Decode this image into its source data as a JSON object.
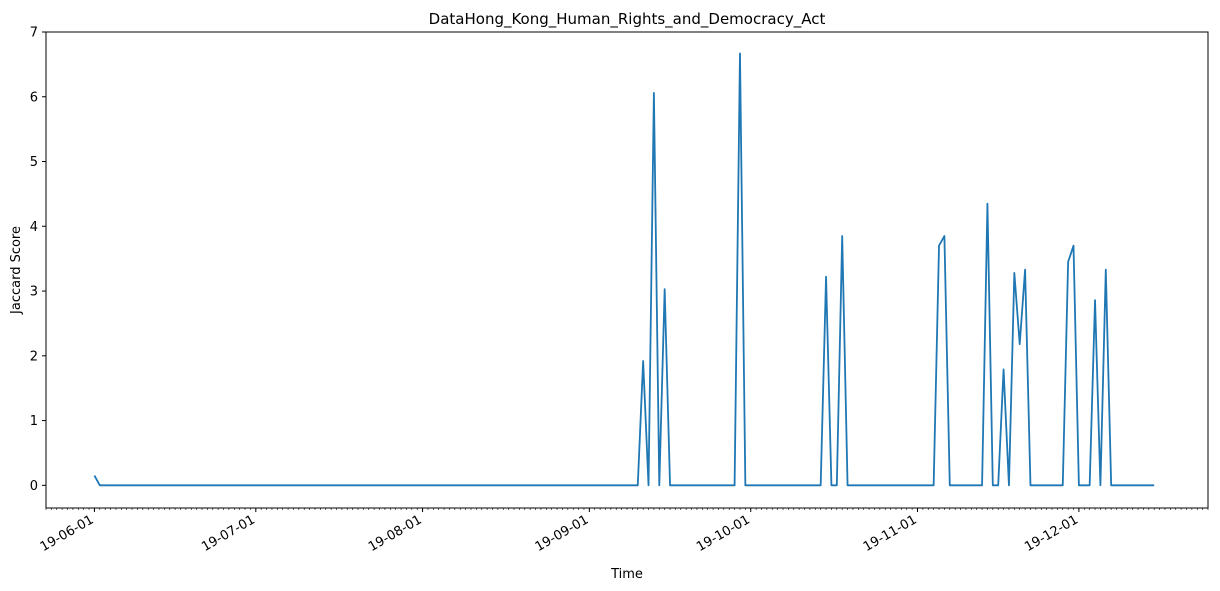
{
  "chart_data": {
    "type": "line",
    "title": "DataHong_Kong_Human_Rights_and_Democracy_Act",
    "xlabel": "Time",
    "ylabel": "Jaccard Score",
    "x_type": "date",
    "xlim": [
      "2019-05-23",
      "2019-12-25"
    ],
    "ylim": [
      -0.35,
      7
    ],
    "y_ticks": [
      0,
      1,
      2,
      3,
      4,
      5,
      6,
      7
    ],
    "x_ticks": [
      {
        "date": "2019-06-01",
        "label": "19-06-01"
      },
      {
        "date": "2019-07-01",
        "label": "19-07-01"
      },
      {
        "date": "2019-08-01",
        "label": "19-08-01"
      },
      {
        "date": "2019-09-01",
        "label": "19-09-01"
      },
      {
        "date": "2019-10-01",
        "label": "19-10-01"
      },
      {
        "date": "2019-11-01",
        "label": "19-11-01"
      },
      {
        "date": "2019-12-01",
        "label": "19-12-01"
      }
    ],
    "grid": false,
    "legend": "none",
    "line_color": "#1f77b4",
    "series": [
      {
        "x": [
          "2019-06-01",
          "2019-06-02",
          "2019-09-10",
          "2019-09-11",
          "2019-09-12",
          "2019-09-13",
          "2019-09-14",
          "2019-09-15",
          "2019-09-16",
          "2019-09-28",
          "2019-09-29",
          "2019-09-30",
          "2019-10-14",
          "2019-10-15",
          "2019-10-16",
          "2019-10-17",
          "2019-10-18",
          "2019-10-19",
          "2019-11-04",
          "2019-11-05",
          "2019-11-06",
          "2019-11-07",
          "2019-11-13",
          "2019-11-14",
          "2019-11-15",
          "2019-11-16",
          "2019-11-17",
          "2019-11-18",
          "2019-11-19",
          "2019-11-20",
          "2019-11-21",
          "2019-11-22",
          "2019-11-23",
          "2019-11-28",
          "2019-11-29",
          "2019-11-30",
          "2019-12-01",
          "2019-12-02",
          "2019-12-03",
          "2019-12-04",
          "2019-12-05",
          "2019-12-06",
          "2019-12-07",
          "2019-12-08",
          "2019-12-09",
          "2019-12-10",
          "2019-12-11",
          "2019-12-12",
          "2019-12-13",
          "2019-12-14",
          "2019-12-15"
        ],
        "values": [
          0.15,
          0,
          0,
          1.92,
          0,
          6.06,
          0,
          3.03,
          0,
          0,
          6.67,
          0,
          0,
          3.22,
          0,
          0,
          3.85,
          0,
          0,
          3.7,
          3.85,
          0,
          0,
          4.35,
          0,
          0,
          1.79,
          0,
          3.28,
          2.18,
          3.33,
          0,
          0,
          0,
          3.45,
          3.7,
          0,
          0,
          0,
          2.86,
          0,
          3.33,
          0,
          0,
          0,
          0,
          0,
          0,
          0,
          0,
          0
        ]
      }
    ]
  }
}
